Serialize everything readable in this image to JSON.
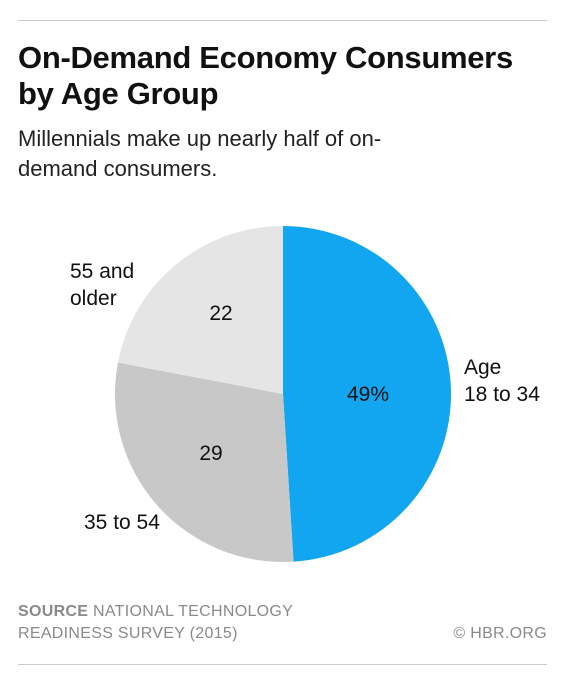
{
  "header": {
    "title": "On-Demand Economy Consumers by Age Group",
    "subtitle": "Millennials make up nearly half of on-demand consumers."
  },
  "chart_data": {
    "type": "pie",
    "title": "On-Demand Economy Consumers by Age Group",
    "subtitle": "Millennials make up nearly half of on-demand consumers.",
    "slices": [
      {
        "label_lines": [
          "Age",
          "18 to 34"
        ],
        "value": 49,
        "value_label": "49%",
        "color": "#12a6f0"
      },
      {
        "label_lines": [
          "35 to 54"
        ],
        "value": 29,
        "value_label": "29",
        "color": "#c8c8c8"
      },
      {
        "label_lines": [
          "55 and",
          "older"
        ],
        "value": 22,
        "value_label": "22",
        "color": "#e5e5e5"
      }
    ],
    "start": "12 o'clock",
    "direction": "clockwise"
  },
  "footer": {
    "source_label": "SOURCE",
    "source_text": "NATIONAL TECHNOLOGY READINESS SURVEY (2015)",
    "credit": "© HBR.ORG"
  }
}
